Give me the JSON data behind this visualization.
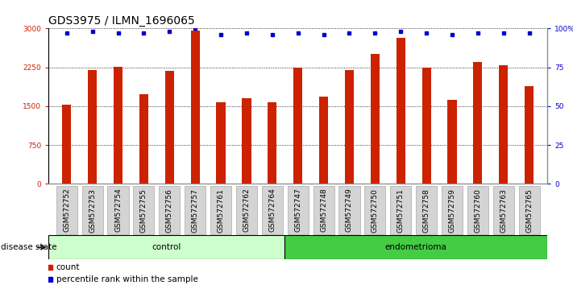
{
  "title": "GDS3975 / ILMN_1696065",
  "samples": [
    "GSM572752",
    "GSM572753",
    "GSM572754",
    "GSM572755",
    "GSM572756",
    "GSM572757",
    "GSM572761",
    "GSM572762",
    "GSM572764",
    "GSM572747",
    "GSM572748",
    "GSM572749",
    "GSM572750",
    "GSM572751",
    "GSM572758",
    "GSM572759",
    "GSM572760",
    "GSM572763",
    "GSM572765"
  ],
  "counts": [
    1530,
    2190,
    2260,
    1730,
    2180,
    2960,
    1570,
    1650,
    1570,
    2240,
    1690,
    2190,
    2510,
    2820,
    2250,
    1620,
    2360,
    2290,
    1890
  ],
  "percentiles": [
    97,
    98,
    97,
    97,
    98,
    100,
    96,
    97,
    96,
    97,
    96,
    97,
    97,
    98,
    97,
    96,
    97,
    97,
    97
  ],
  "bar_color": "#cc2200",
  "dot_color": "#0000cc",
  "control_count": 9,
  "endometrioma_count": 10,
  "control_label": "control",
  "endometrioma_label": "endometrioma",
  "disease_state_label": "disease state",
  "legend_count_label": "count",
  "legend_pct_label": "percentile rank within the sample",
  "ylim_left": [
    0,
    3000
  ],
  "ylim_right": [
    0,
    100
  ],
  "yticks_left": [
    0,
    750,
    1500,
    2250,
    3000
  ],
  "yticks_right": [
    0,
    25,
    50,
    75,
    100
  ],
  "ytick_labels_left": [
    "0",
    "750",
    "1500",
    "2250",
    "3000"
  ],
  "ytick_labels_right": [
    "0",
    "25",
    "50",
    "75",
    "100%"
  ],
  "control_bg": "#ccffcc",
  "endo_bg": "#44cc44",
  "title_fontsize": 10,
  "tick_fontsize": 6.5,
  "label_fontsize": 7.5,
  "bar_width": 0.35
}
